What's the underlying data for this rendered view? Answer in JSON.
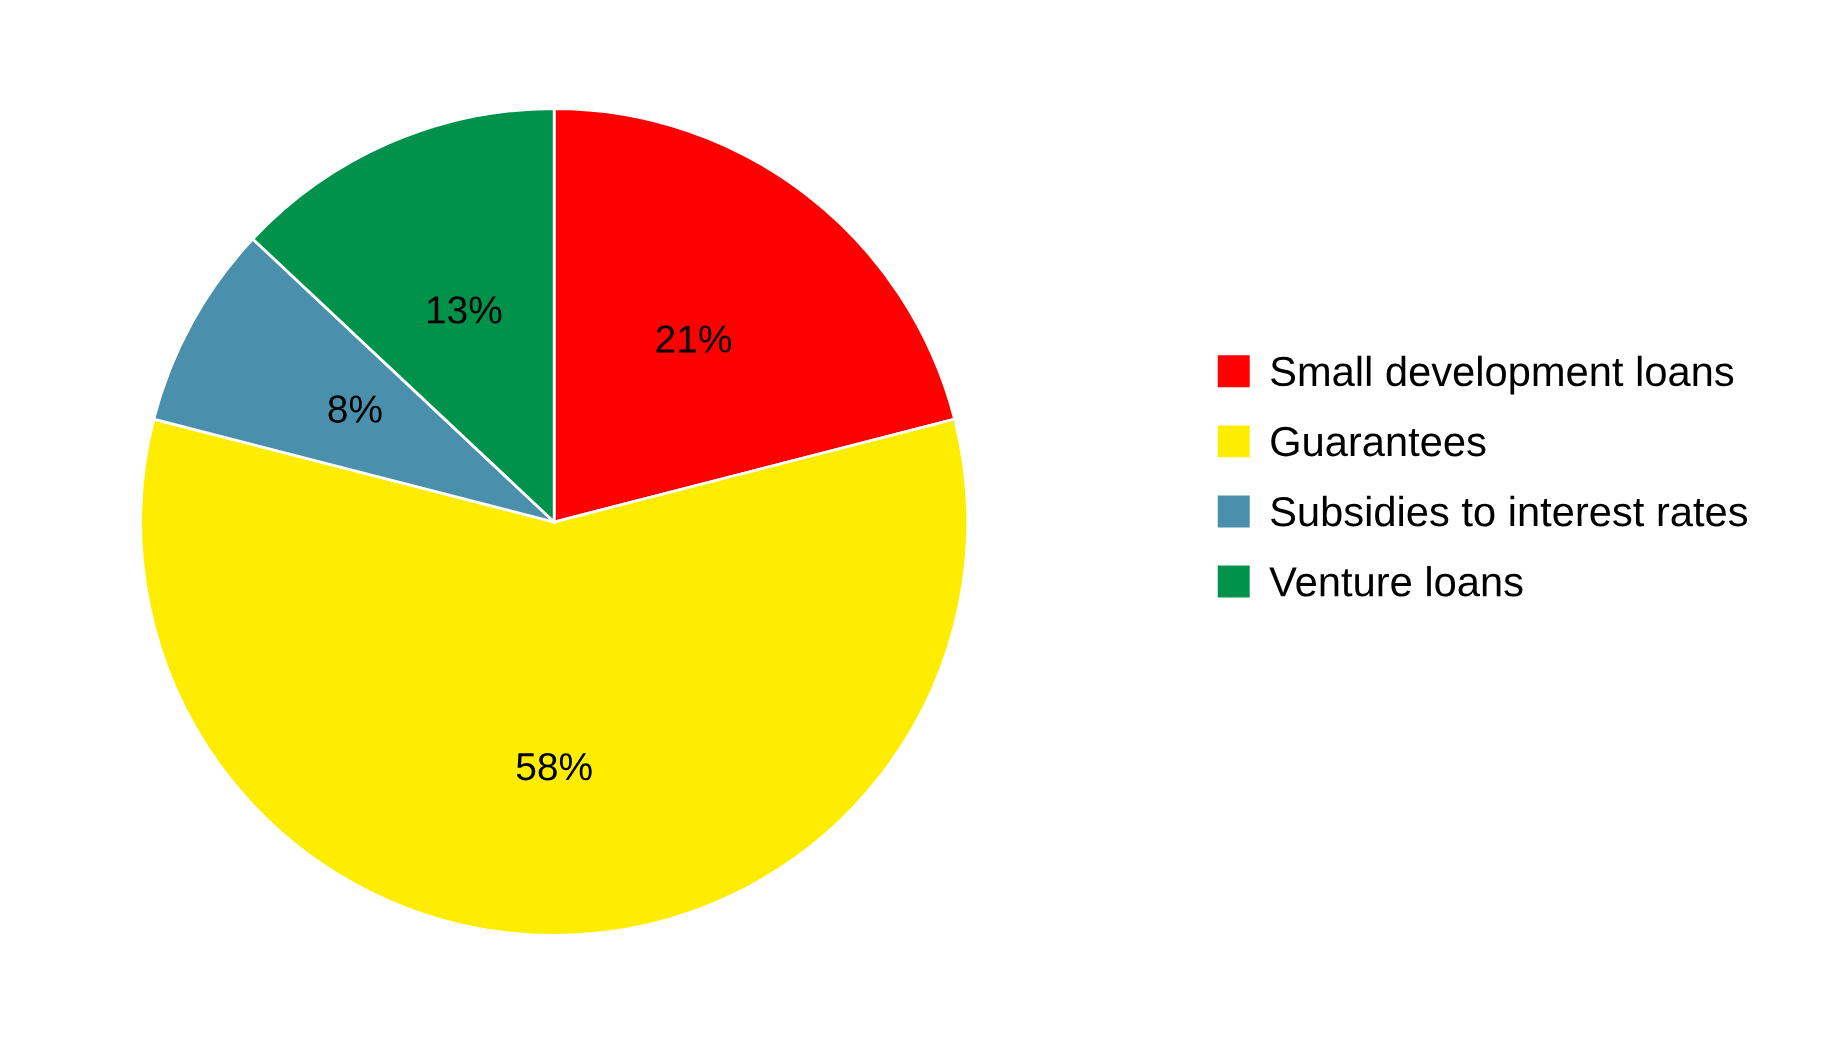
{
  "chart_data": {
    "type": "pie",
    "categories": [
      "Small development loans",
      "Guarantees",
      "Subsidies to interest rates",
      "Venture loans"
    ],
    "values": [
      21,
      58,
      8,
      13
    ],
    "colors": [
      "#ff0000",
      "#ffed00",
      "#4a8fab",
      "#00914b"
    ],
    "value_labels": [
      "21%",
      "58%",
      "8%",
      "13%"
    ],
    "legend": "right"
  }
}
